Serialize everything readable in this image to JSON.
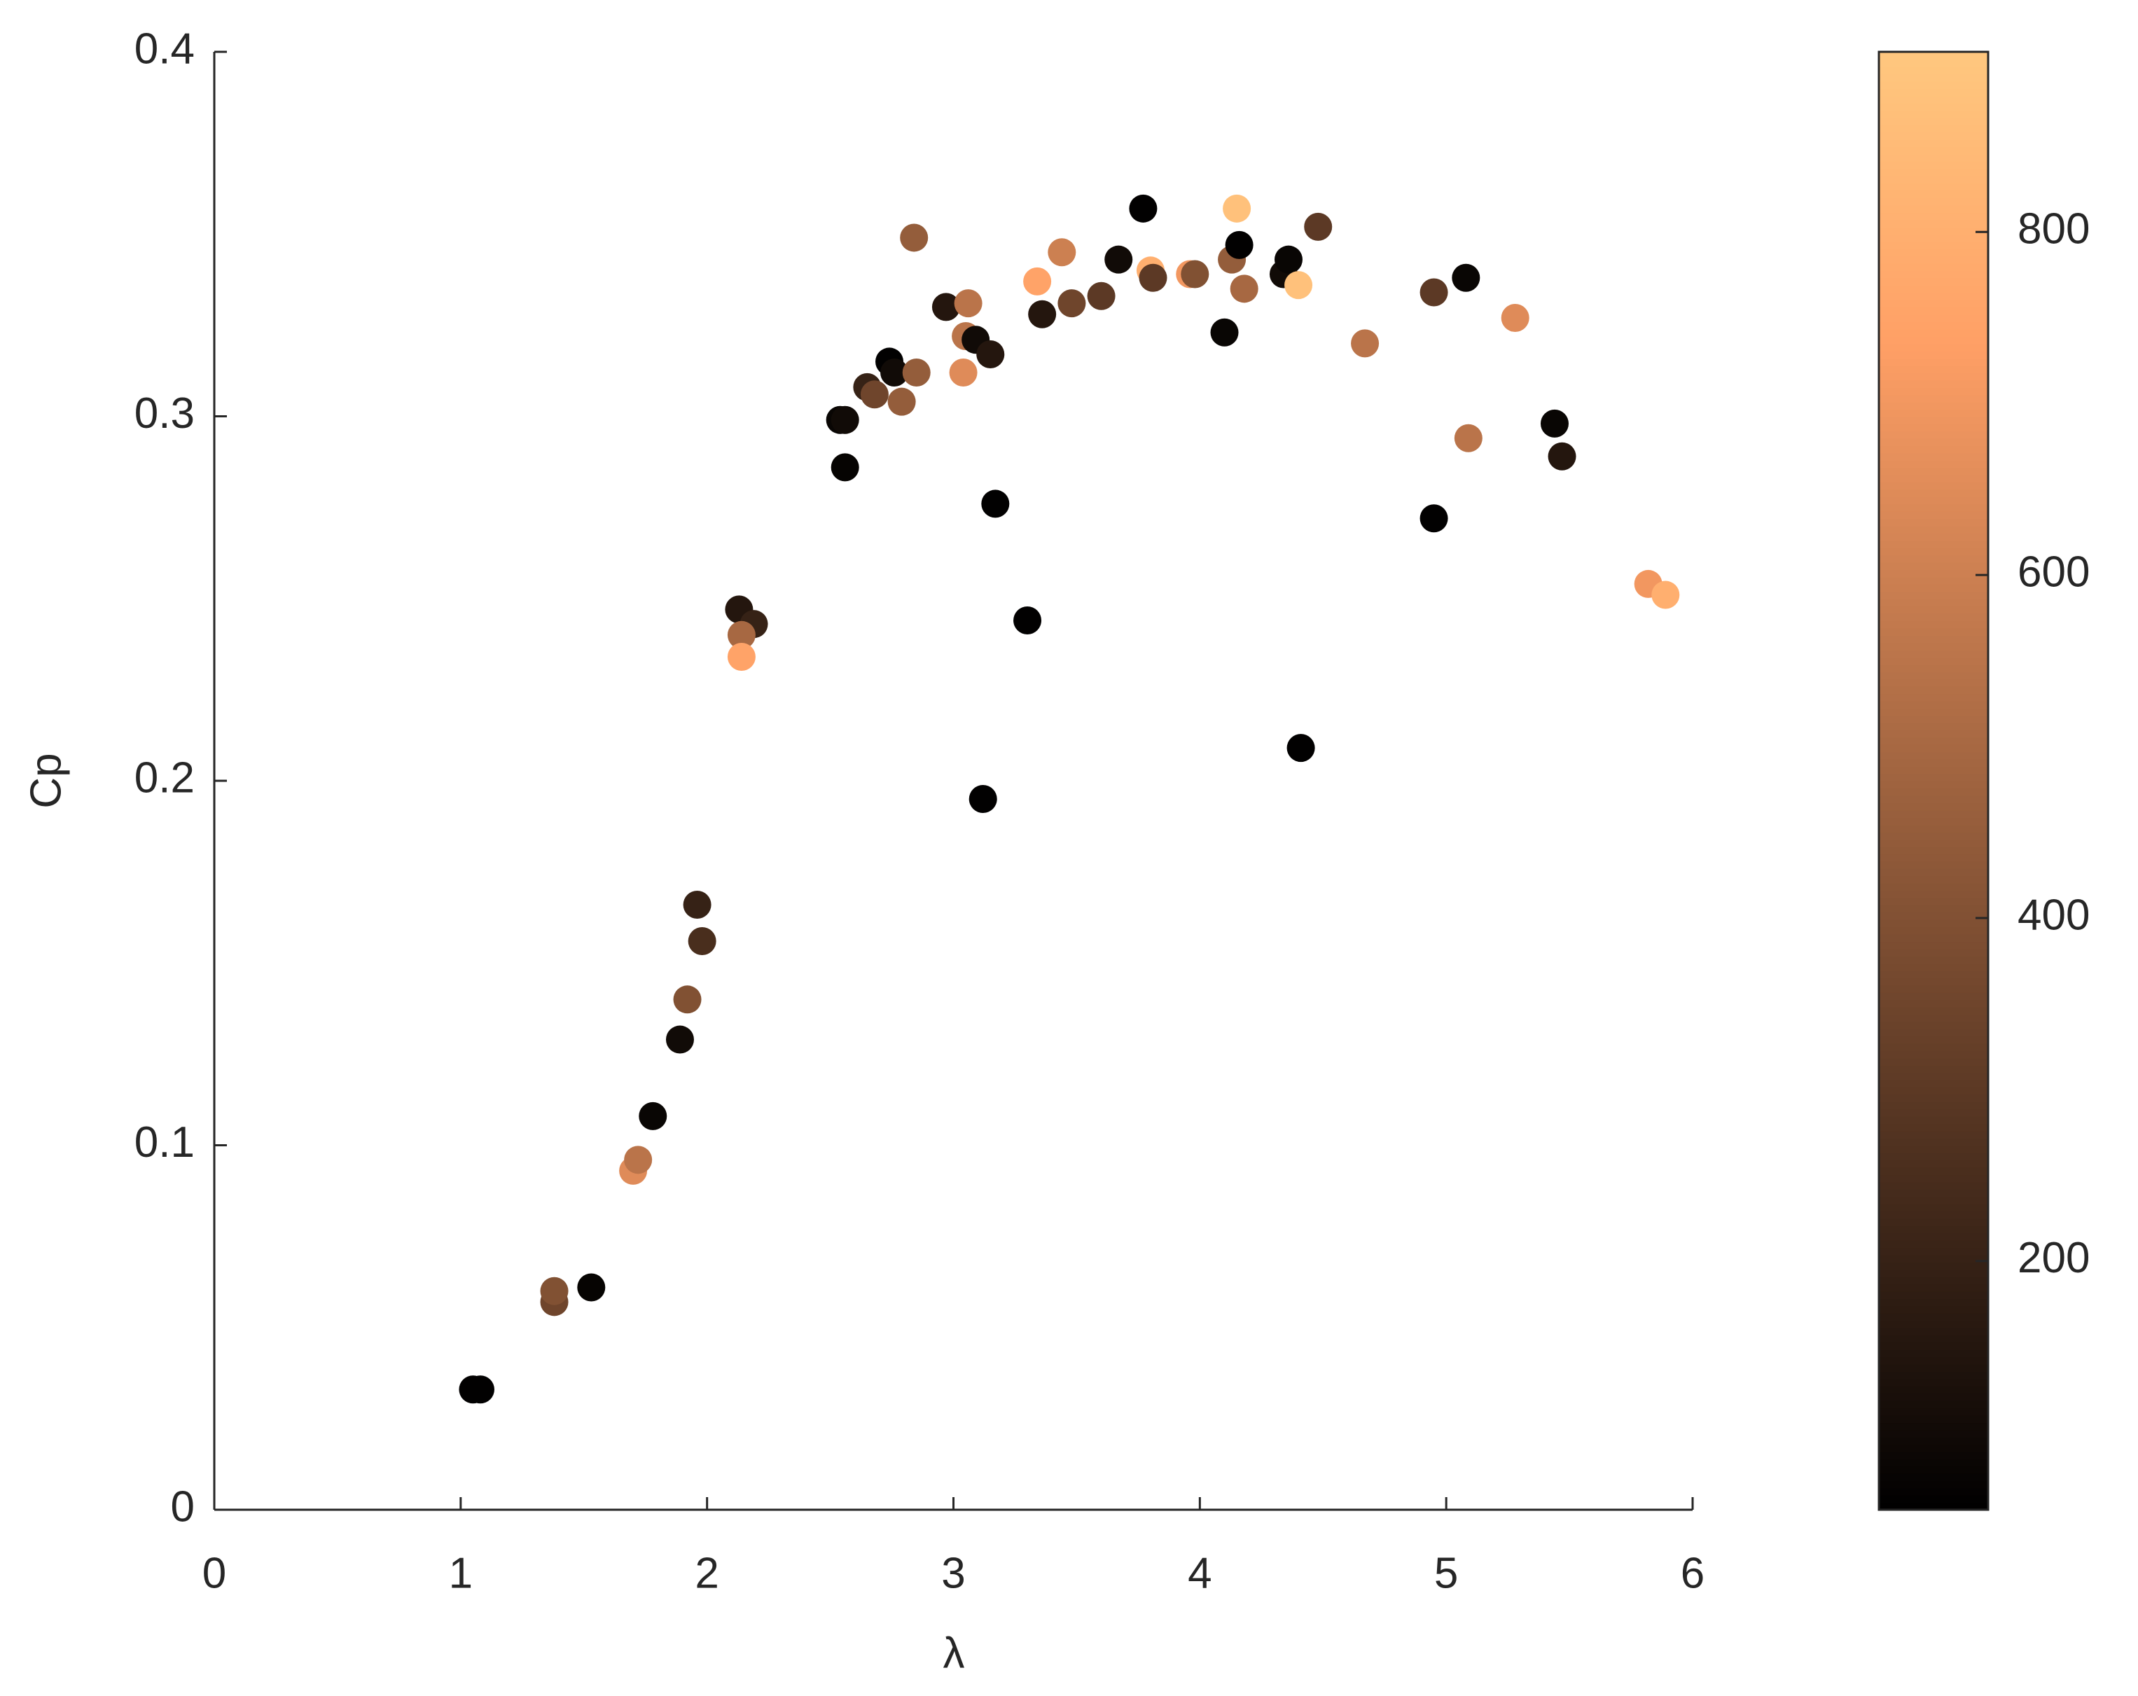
{
  "chart_data": {
    "type": "scatter",
    "xlabel": "λ",
    "ylabel": "Cp",
    "colormap": "copper",
    "xlim": [
      0,
      6
    ],
    "xticks": [
      0,
      1,
      2,
      3,
      4,
      5,
      6
    ],
    "ylim": [
      0,
      0.4
    ],
    "yticks": [
      0,
      0.1,
      0.2,
      0.3,
      0.4
    ],
    "clim": [
      55,
      905
    ],
    "cticks": [
      200,
      400,
      600,
      800
    ],
    "series": [
      {
        "x": [
          1.05,
          1.08,
          1.38,
          1.38,
          1.53,
          1.7,
          1.72,
          1.78,
          1.89,
          1.92,
          1.96,
          1.98,
          2.13,
          2.19,
          2.14,
          2.14,
          2.54,
          2.56,
          2.56,
          2.65,
          2.68,
          2.74,
          2.76,
          2.79,
          2.84,
          2.85,
          2.97,
          3.04,
          3.05,
          3.06,
          3.09,
          3.15,
          3.12,
          3.17,
          3.3,
          3.34,
          3.36,
          3.44,
          3.48,
          3.6,
          3.67,
          3.77,
          3.8,
          3.81,
          3.96,
          3.98,
          4.1,
          4.13,
          4.15,
          4.16,
          4.18,
          4.34,
          4.36,
          4.4,
          4.41,
          4.48,
          4.67,
          4.95,
          4.95,
          5.08,
          5.09,
          5.28,
          5.44,
          5.47,
          5.82,
          5.89
        ],
        "values": [
          0.033,
          0.033,
          0.057,
          0.06,
          0.061,
          0.093,
          0.096,
          0.108,
          0.129,
          0.14,
          0.166,
          0.156,
          0.247,
          0.243,
          0.24,
          0.234,
          0.299,
          0.299,
          0.286,
          0.308,
          0.306,
          0.315,
          0.312,
          0.304,
          0.349,
          0.312,
          0.33,
          0.312,
          0.322,
          0.331,
          0.321,
          0.317,
          0.195,
          0.276,
          0.244,
          0.337,
          0.328,
          0.345,
          0.331,
          0.333,
          0.343,
          0.357,
          0.34,
          0.338,
          0.339,
          0.339,
          0.323,
          0.343,
          0.357,
          0.347,
          0.335,
          0.339,
          0.343,
          0.336,
          0.209,
          0.352,
          0.32,
          0.334,
          0.272,
          0.338,
          0.294,
          0.327,
          0.298,
          0.289,
          0.254,
          0.251
        ],
        "color_values": [
          60,
          60,
          350,
          400,
          70,
          650,
          550,
          80,
          100,
          400,
          200,
          250,
          150,
          200,
          500,
          750,
          80,
          100,
          70,
          200,
          350,
          60,
          100,
          450,
          450,
          450,
          150,
          650,
          550,
          550,
          100,
          150,
          60,
          60,
          60,
          750,
          150,
          600,
          350,
          300,
          100,
          60,
          800,
          300,
          700,
          400,
          80,
          450,
          880,
          60,
          500,
          100,
          80,
          880,
          60,
          300,
          550,
          300,
          60,
          80,
          550,
          650,
          80,
          150,
          700,
          800
        ]
      }
    ]
  }
}
